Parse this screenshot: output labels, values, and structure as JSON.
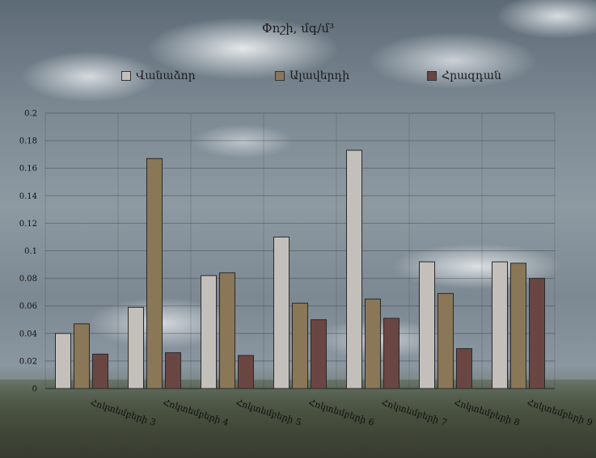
{
  "chart_data": {
    "type": "bar",
    "title": "Փոշի, մգ/մ³",
    "categories": [
      "Հոկտեմբերի 3",
      "Հոկտեմբերի 4",
      "Հոկտեմբերի 5",
      "Հոկտեմբերի 6",
      "Հոկտեմբերի 7",
      "Հոկտեմբերի 8",
      "Հոկտեմբերի 9"
    ],
    "series": [
      {
        "name": "Վանաձոր",
        "color": "#c3c0bc",
        "values": [
          0.04,
          0.059,
          0.082,
          0.11,
          0.173,
          0.092,
          0.092
        ]
      },
      {
        "name": "Ալավերդի",
        "color": "#8a7757",
        "values": [
          0.047,
          0.167,
          0.084,
          0.062,
          0.065,
          0.069,
          0.091
        ]
      },
      {
        "name": "Հրազդան",
        "color": "#6a4642",
        "values": [
          0.025,
          0.026,
          0.024,
          0.05,
          0.051,
          0.029,
          0.08
        ]
      }
    ],
    "ylim": [
      0,
      0.2
    ],
    "yticks": [
      "0",
      "0.02",
      "0.04",
      "0.06",
      "0.08",
      "0.1",
      "0.12",
      "0.14",
      "0.16",
      "0.18",
      "0.2"
    ],
    "grid": true,
    "legend_position": "top"
  }
}
